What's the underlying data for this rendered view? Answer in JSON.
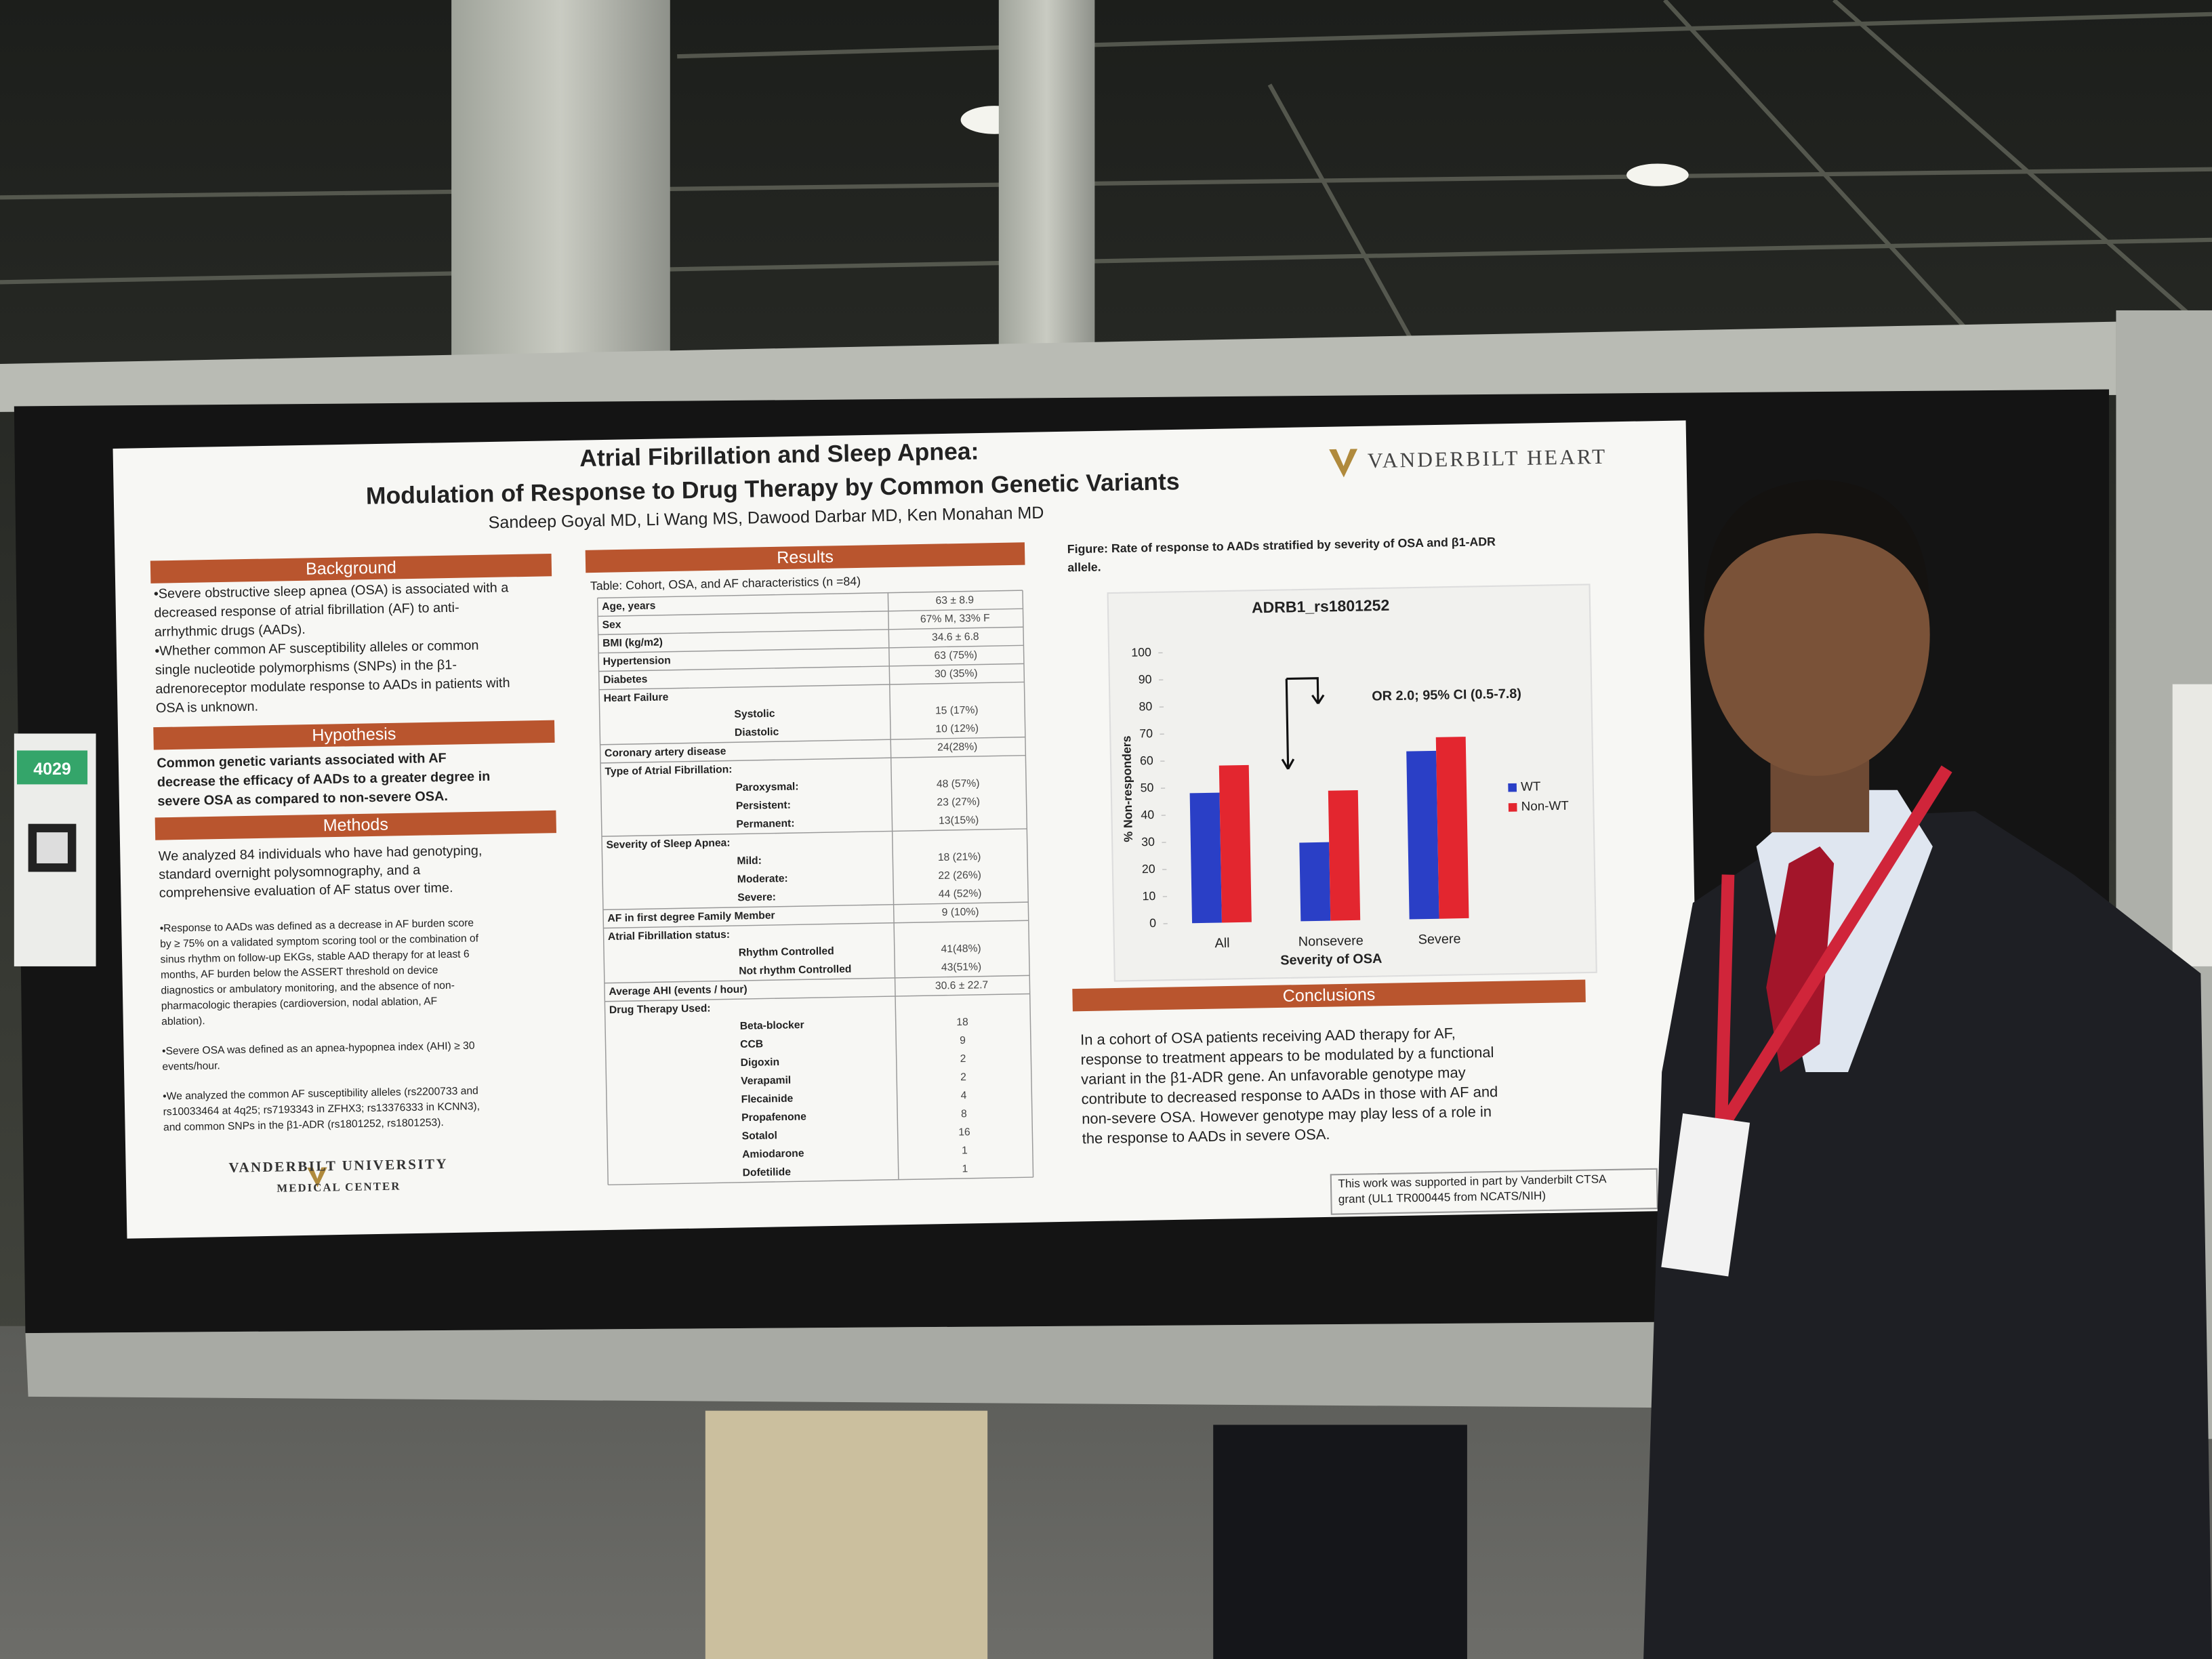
{
  "poster": {
    "title": "Atrial Fibrillation and Sleep Apnea:",
    "subtitle": "Modulation of Response to Drug Therapy by Common Genetic Variants",
    "authors": "Sandeep Goyal MD, Li Wang MS, Dawood Darbar MD, Ken Monahan MD",
    "logo": "VANDERBILT HEART",
    "background": {
      "heading": "Background",
      "lines": [
        "•Severe obstructive sleep apnea (OSA) is associated with a",
        "decreased response of atrial fibrillation (AF) to anti-",
        "arrhythmic drugs (AADs).",
        "•Whether common AF susceptibility alleles or common",
        "single nucleotide polymorphisms (SNPs) in the β1-",
        "adrenoreceptor modulate response to AADs in patients with",
        "OSA is unknown."
      ]
    },
    "hypothesis": {
      "heading": "Hypothesis",
      "lines": [
        "Common genetic variants associated with AF",
        "decrease the efficacy of AADs to a greater degree in",
        "severe OSA as compared to non-severe OSA."
      ]
    },
    "methods": {
      "heading": "Methods",
      "lines": [
        "We analyzed 84 individuals who have had genotyping,",
        "standard overnight polysomnography, and a",
        "comprehensive evaluation of AF status over time."
      ],
      "notes": [
        [
          "•Response to AADs was defined as a decrease in AF burden score",
          "by ≥ 75% on a validated symptom scoring tool or the combination of",
          "sinus rhythm on follow-up EKGs, stable AAD therapy for at least 6",
          "months, AF burden below the ASSERT threshold on device",
          "diagnostics or ambulatory monitoring, and the absence of non-",
          "pharmacologic therapies (cardioversion, nodal ablation, AF",
          "ablation)."
        ],
        [
          "•Severe OSA was defined as an apnea-hypopnea index (AHI) ≥ 30",
          "events/hour."
        ],
        [
          "•We analyzed the common AF susceptibility alleles (rs2200733 and",
          "rs10033464 at 4q25; rs7193343 in ZFHX3; rs13376333 in KCNN3),",
          "and common SNPs in the β1-ADR (rs1801252, rs1801253)."
        ]
      ]
    },
    "footer_logo": {
      "name": "VANDERBILT UNIVERSITY",
      "sub": "MEDICAL CENTER"
    },
    "results": {
      "heading": "Results",
      "table": {
        "caption": "Table:  Cohort, OSA, and AF characteristics (n =84)",
        "rows": [
          {
            "label": "Age, years",
            "value": "63 ± 8.9"
          },
          {
            "label": "Sex",
            "value": "67% M, 33% F"
          },
          {
            "label": "BMI (kg/m2)",
            "value": "34.6 ± 6.8"
          },
          {
            "label": "Hypertension",
            "value": "63 (75%)"
          },
          {
            "label": "Diabetes",
            "value": "30 (35%)"
          },
          {
            "label": "Heart Failure",
            "items": [
              {
                "label": "Systolic",
                "value": "15 (17%)"
              },
              {
                "label": "Diastolic",
                "value": "10 (12%)"
              }
            ]
          },
          {
            "label": "Coronary artery disease",
            "value": "24(28%)"
          },
          {
            "label": "Type of Atrial Fibrillation:",
            "items": [
              {
                "label": "Paroxysmal:",
                "value": "48 (57%)"
              },
              {
                "label": "Persistent:",
                "value": "23 (27%)"
              },
              {
                "label": "Permanent:",
                "value": "13(15%)"
              }
            ]
          },
          {
            "label": "Severity of Sleep Apnea:",
            "items": [
              {
                "label": "Mild:",
                "value": "18 (21%)"
              },
              {
                "label": "Moderate:",
                "value": "22 (26%)"
              },
              {
                "label": "Severe:",
                "value": "44 (52%)"
              }
            ]
          },
          {
            "label": "AF in first degree Family Member",
            "value": "9 (10%)"
          },
          {
            "label": "Atrial Fibrillation status:",
            "items": [
              {
                "label": "Rhythm Controlled",
                "value": "41(48%)"
              },
              {
                "label": "Not rhythm Controlled",
                "value": "43(51%)"
              }
            ]
          },
          {
            "label": "Average AHI (events / hour)",
            "value": "30.6 ± 22.7"
          },
          {
            "label": "Drug Therapy Used:",
            "items": [
              {
                "label": "Beta-blocker",
                "value": "18"
              },
              {
                "label": "CCB",
                "value": "9"
              },
              {
                "label": "Digoxin",
                "value": "2"
              },
              {
                "label": "Verapamil",
                "value": "2"
              },
              {
                "label": "Flecainide",
                "value": "4"
              },
              {
                "label": "Propafenone",
                "value": "8"
              },
              {
                "label": "Sotalol",
                "value": "16"
              },
              {
                "label": "Amiodarone",
                "value": "1"
              },
              {
                "label": "Dofetilide",
                "value": "1"
              }
            ]
          }
        ]
      }
    },
    "figure": {
      "caption": [
        "Figure:  Rate of response to AADs stratified by severity of OSA and β1-ADR",
        "allele."
      ],
      "chart": {
        "type": "bar",
        "title": "ADRB1_rs1801252",
        "categories": [
          "All",
          "Nonsevere",
          "Severe"
        ],
        "series": [
          {
            "name": "WT",
            "color": "#2a3fc6",
            "values": [
              48,
              29,
              62
            ]
          },
          {
            "name": "Non-WT",
            "color": "#e3262f",
            "values": [
              58,
              48,
              67
            ]
          }
        ],
        "ylim": [
          0,
          100
        ],
        "yticks": [
          0,
          10,
          20,
          30,
          40,
          50,
          60,
          70,
          80,
          90,
          100
        ],
        "x_label": "Severity of OSA",
        "y_label": "% Non-responders",
        "annotation": "OR 2.0; 95% CI (0.5-7.8)"
      }
    },
    "conclusions": {
      "heading": "Conclusions",
      "lines": [
        "In a cohort of OSA patients receiving AAD therapy for AF,",
        "response to treatment appears to be modulated by  a functional",
        "variant in the β1-ADR gene.  An unfavorable genotype may",
        "contribute to decreased response to AADs in those with AF and",
        "non-severe OSA.  However genotype may play less of a role in",
        "the response to AADs in severe OSA."
      ]
    },
    "funding": [
      "This work  was supported in part by Vanderbilt CTSA",
      "grant (UL1 TR000445 from NCATS/NIH)"
    ]
  },
  "booth": {
    "number": "4029"
  }
}
